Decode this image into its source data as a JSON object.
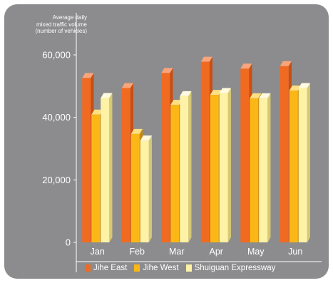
{
  "chart_data": {
    "type": "bar",
    "ylabel_lines": [
      "Average daily",
      "mixed traffic volume",
      "(number of vehicles)"
    ],
    "categories": [
      "Jan",
      "Feb",
      "Mar",
      "Apr",
      "May",
      "Jun"
    ],
    "yticks": [
      0,
      20000,
      40000,
      60000
    ],
    "ytick_labels": [
      "0",
      "20,000",
      "40,000",
      "60,000"
    ],
    "ylim": [
      0,
      62000
    ],
    "series": [
      {
        "name": "Jihe East",
        "values": [
          52600,
          49400,
          54200,
          57800,
          55600,
          56400
        ]
      },
      {
        "name": "Jihe West",
        "values": [
          40900,
          34700,
          44000,
          47200,
          46100,
          48600
        ]
      },
      {
        "name": "Shuiguan Expressway",
        "values": [
          46200,
          32600,
          46800,
          47800,
          46100,
          49400
        ]
      }
    ],
    "legend_position": "bottom",
    "grid": false
  },
  "colors": {
    "background": "#8c8c8e",
    "series": [
      {
        "front": "#f06a22",
        "top": "#f9a47a",
        "side": "#c84e12"
      },
      {
        "front": "#fbb717",
        "top": "#fde083",
        "side": "#c98a0c"
      },
      {
        "front": "#fef2a6",
        "top": "#fffbe0",
        "side": "#d7c873"
      }
    ]
  }
}
